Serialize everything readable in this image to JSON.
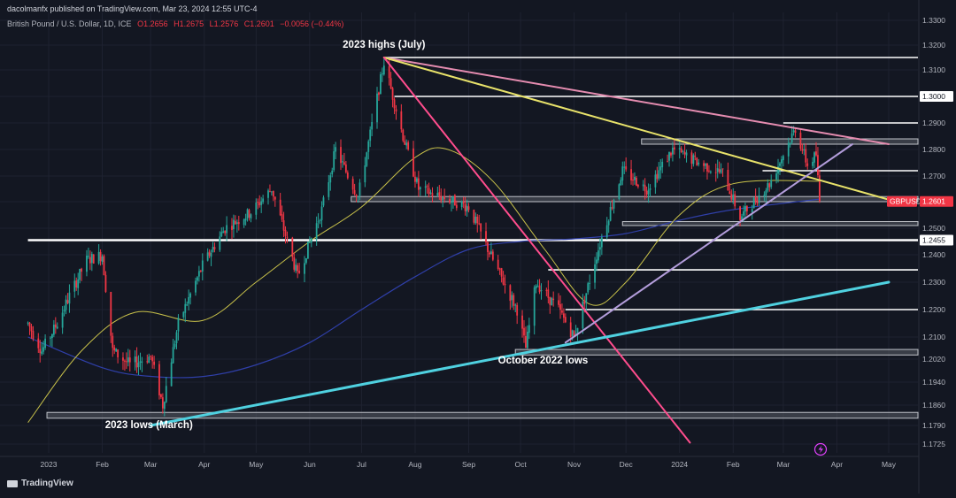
{
  "header": {
    "published": "dacolmanfx published on TradingView.com, Mar 23, 2024 12:55 UTC-4",
    "symbol": "British Pound / U.S. Dollar, 1D, ICE",
    "open": "O1.2656",
    "high": "H1.2675",
    "low": "L1.2576",
    "close": "C1.2601",
    "change": "−0.0056 (−0.44%)"
  },
  "footer": {
    "brand": "TradingView"
  },
  "colors": {
    "background": "#131722",
    "bull": "#26a69a",
    "bear": "#f23645",
    "ma_fast": "#c9c24a",
    "ma_slow": "#2f3fa8",
    "trend_yellow": "#e8e26a",
    "trend_pink_fast": "#ff4d8d",
    "trend_pink_slow": "#e58cb0",
    "trend_purple": "#b39ddb",
    "trend_cyan": "#4fd1e0",
    "levels": "#ffffff",
    "zones": "#9e9e9e"
  },
  "chart_data": {
    "type": "candlestick",
    "series_name": "GBPUSD",
    "y_axis": {
      "ticks": [
        "1.3300",
        "1.3200",
        "1.3100",
        "1.3000",
        "1.2900",
        "1.2800",
        "1.2700",
        "1.2600",
        "1.2500",
        "1.2400",
        "1.2300",
        "1.2200",
        "1.2100",
        "1.2020",
        "1.1940",
        "1.1860",
        "1.1790",
        "1.1725"
      ],
      "tick_values": [
        1.33,
        1.32,
        1.31,
        1.3,
        1.29,
        1.28,
        1.27,
        1.26,
        1.25,
        1.24,
        1.23,
        1.22,
        1.21,
        1.202,
        1.194,
        1.186,
        1.179,
        1.1725
      ],
      "range": [
        1.1725,
        1.334
      ]
    },
    "x_axis": {
      "labels": [
        "2023",
        "Feb",
        "Mar",
        "Apr",
        "May",
        "Jun",
        "Jul",
        "Aug",
        "Sep",
        "Oct",
        "Nov",
        "Dec",
        "2024",
        "Feb",
        "Mar",
        "Apr",
        "May"
      ],
      "dates": [
        "2023-01-01",
        "2023-02-01",
        "2023-03-01",
        "2023-04-01",
        "2023-05-01",
        "2023-06-01",
        "2023-07-01",
        "2023-08-01",
        "2023-09-01",
        "2023-10-01",
        "2023-11-01",
        "2023-12-01",
        "2024-01-01",
        "2024-02-01",
        "2024-03-01",
        "2024-04-01",
        "2024-05-01"
      ],
      "range": [
        "2022-12-20",
        "2024-05-25"
      ]
    },
    "price_path": [
      [
        "2022-12-20",
        1.215
      ],
      [
        "2022-12-28",
        1.205
      ],
      [
        "2023-01-06",
        1.215
      ],
      [
        "2023-01-13",
        1.225
      ],
      [
        "2023-01-23",
        1.238
      ],
      [
        "2023-02-01",
        1.24
      ],
      [
        "2023-02-07",
        1.205
      ],
      [
        "2023-02-17",
        1.2
      ],
      [
        "2023-03-01",
        1.203
      ],
      [
        "2023-03-08",
        1.186
      ],
      [
        "2023-03-17",
        1.215
      ],
      [
        "2023-03-31",
        1.236
      ],
      [
        "2023-04-13",
        1.25
      ],
      [
        "2023-04-28",
        1.256
      ],
      [
        "2023-05-10",
        1.265
      ],
      [
        "2023-05-25",
        1.232
      ],
      [
        "2023-06-08",
        1.257
      ],
      [
        "2023-06-16",
        1.28
      ],
      [
        "2023-06-29",
        1.262
      ],
      [
        "2023-07-14",
        1.313
      ],
      [
        "2023-07-25",
        1.285
      ],
      [
        "2023-08-03",
        1.265
      ],
      [
        "2023-08-24",
        1.26
      ],
      [
        "2023-09-01",
        1.258
      ],
      [
        "2023-09-15",
        1.238
      ],
      [
        "2023-09-29",
        1.22
      ],
      [
        "2023-10-04",
        1.206
      ],
      [
        "2023-10-10",
        1.23
      ],
      [
        "2023-10-23",
        1.22
      ],
      [
        "2023-11-01",
        1.21
      ],
      [
        "2023-11-14",
        1.24
      ],
      [
        "2023-11-29",
        1.272
      ],
      [
        "2023-12-13",
        1.265
      ],
      [
        "2023-12-28",
        1.28
      ],
      [
        "2024-01-12",
        1.275
      ],
      [
        "2024-01-26",
        1.271
      ],
      [
        "2024-02-05",
        1.254
      ],
      [
        "2024-02-22",
        1.267
      ],
      [
        "2024-03-08",
        1.288
      ],
      [
        "2024-03-15",
        1.274
      ],
      [
        "2024-03-20",
        1.278
      ],
      [
        "2024-03-22",
        1.2601
      ]
    ],
    "ma_fast_path": [
      [
        "2022-12-20",
        1.18
      ],
      [
        "2023-01-20",
        1.205
      ],
      [
        "2023-02-20",
        1.219
      ],
      [
        "2023-03-31",
        1.216
      ],
      [
        "2023-05-01",
        1.23
      ],
      [
        "2023-06-01",
        1.245
      ],
      [
        "2023-07-01",
        1.258
      ],
      [
        "2023-08-01",
        1.277
      ],
      [
        "2023-08-20",
        1.28
      ],
      [
        "2023-09-15",
        1.268
      ],
      [
        "2023-10-15",
        1.242
      ],
      [
        "2023-11-10",
        1.222
      ],
      [
        "2023-12-01",
        1.23
      ],
      [
        "2024-01-01",
        1.255
      ],
      [
        "2024-02-01",
        1.267
      ],
      [
        "2024-03-22",
        1.268
      ]
    ],
    "ma_slow_path": [
      [
        "2022-12-20",
        1.21
      ],
      [
        "2023-02-01",
        1.199
      ],
      [
        "2023-03-01",
        1.196
      ],
      [
        "2023-04-01",
        1.196
      ],
      [
        "2023-05-01",
        1.2
      ],
      [
        "2023-06-01",
        1.208
      ],
      [
        "2023-07-01",
        1.22
      ],
      [
        "2023-08-01",
        1.232
      ],
      [
        "2023-09-01",
        1.242
      ],
      [
        "2023-10-01",
        1.245
      ],
      [
        "2023-11-01",
        1.246
      ],
      [
        "2023-12-01",
        1.248
      ],
      [
        "2024-01-01",
        1.253
      ],
      [
        "2024-02-01",
        1.257
      ],
      [
        "2024-03-22",
        1.261
      ]
    ],
    "horizontal_levels": [
      {
        "price": 1.315,
        "from": "2023-07-15",
        "to": "2024-05-25"
      },
      {
        "price": 1.3,
        "from": "2023-07-20",
        "to": "2024-05-25"
      },
      {
        "price": 1.29,
        "from": "2024-03-01",
        "to": "2024-05-25"
      },
      {
        "price": 1.272,
        "from": "2024-02-18",
        "to": "2024-05-25"
      },
      {
        "price": 1.2455,
        "from": "2022-12-20",
        "to": "2024-05-25",
        "thick": true
      },
      {
        "price": 1.2345,
        "from": "2023-10-17",
        "to": "2024-05-25"
      },
      {
        "price": 1.22,
        "from": "2023-10-27",
        "to": "2024-05-25"
      }
    ],
    "zones": [
      {
        "low": 1.282,
        "high": 1.284,
        "from": "2023-12-10",
        "to": "2024-05-25"
      },
      {
        "low": 1.26,
        "high": 1.262,
        "from": "2023-06-25",
        "to": "2024-05-25"
      },
      {
        "low": 1.251,
        "high": 1.2525,
        "from": "2023-11-29",
        "to": "2024-05-25"
      },
      {
        "low": 1.2035,
        "high": 1.2055,
        "from": "2023-09-28",
        "to": "2024-05-25"
      },
      {
        "low": 1.1815,
        "high": 1.1835,
        "from": "2022-12-31",
        "to": "2024-05-25"
      }
    ],
    "trendlines": [
      {
        "color": "trend_pink_slow",
        "from": [
          "2023-07-14",
          1.315
        ],
        "to": [
          "2024-05-01",
          1.282
        ]
      },
      {
        "color": "trend_yellow",
        "from": [
          "2023-07-14",
          1.315
        ],
        "to": [
          "2024-04-30",
          1.261
        ]
      },
      {
        "color": "trend_pink_fast",
        "from": [
          "2023-07-14",
          1.315
        ],
        "to": [
          "2024-01-07",
          1.173
        ]
      },
      {
        "color": "trend_purple",
        "from": [
          "2023-10-27",
          1.208
        ],
        "to": [
          "2024-04-10",
          1.282
        ]
      },
      {
        "color": "trend_cyan",
        "width": 3,
        "from": [
          "2023-03-01",
          1.179
        ],
        "to": [
          "2024-05-01",
          1.23
        ]
      }
    ],
    "annotations": [
      {
        "text": "2023 highs (July)",
        "date": "2023-07-14",
        "price": 1.319
      },
      {
        "text": "October 2022 lows",
        "date": "2023-10-14",
        "price": 1.2005
      },
      {
        "text": "2023 lows (March)",
        "date": "2023-02-28",
        "price": 1.178
      }
    ],
    "price_labels": [
      {
        "text": "1.3000",
        "price": 1.3,
        "style": "white"
      },
      {
        "text": "1.2455",
        "price": 1.2455,
        "style": "white"
      },
      {
        "text": "GBPUSD",
        "price": 1.2601,
        "style": "red"
      },
      {
        "text": "1.2601",
        "price": 1.2601,
        "style": "red"
      }
    ]
  }
}
